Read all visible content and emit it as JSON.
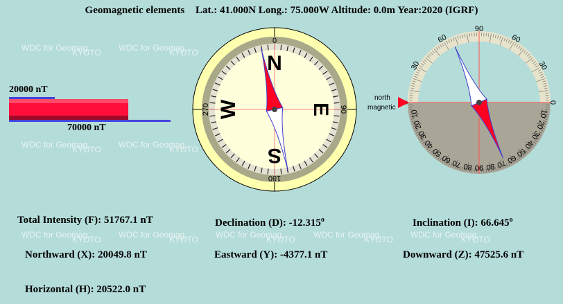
{
  "header": {
    "title": "Geomagnetic elements",
    "location": "Lat.: 41.000N Long.: 75.000W Altitude: 0.0m Year:2020 (IGRF)"
  },
  "watermark": {
    "line1": "WDC for Geomag.",
    "line2": "KYOTO"
  },
  "intensity_bar": {
    "horizontal_scale_label": "20000 nT",
    "total_scale_label": "70000 nT",
    "horizontal_scale_nT": 20000,
    "total_scale_nT": 70000,
    "total_intensity_nT": 51767.1,
    "colors": {
      "bar": "#ff1040",
      "scale_line": "#4444dd"
    }
  },
  "compass": {
    "cardinal": [
      "N",
      "E",
      "S",
      "W"
    ],
    "degree_labels": [
      "0",
      "90",
      "180",
      "270"
    ],
    "declination_deg": -12.315
  },
  "inclinometer": {
    "label_line1": "north",
    "label_line2": "magnetic",
    "upper_labels": [
      "0",
      "30",
      "60",
      "90",
      "60",
      "30",
      "0"
    ],
    "lower_labels": [
      "10",
      "20",
      "30",
      "40",
      "50",
      "60",
      "70",
      "80",
      "90"
    ],
    "inclination_deg": 66.645
  },
  "values": {
    "total": "Total Intensity (F): 51767.1 nT",
    "declination": "Declination (D): -12.315",
    "inclination": "Inclination (I): 66.645",
    "degree_sign": "o",
    "northward": "Northward (X): 20049.8 nT",
    "eastward": "Eastward (Y): -4377.1 nT",
    "downward": "Downward (Z): 47525.6 nT",
    "horizontal": "Horizontal (H): 20522.0 nT"
  }
}
